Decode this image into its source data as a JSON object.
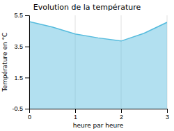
{
  "chart_data": {
    "type": "area",
    "title": "Evolution de la température",
    "xlabel": "heure par heure",
    "ylabel": "Température en °C",
    "x": [
      0,
      0.5,
      1,
      1.5,
      2,
      2.5,
      3
    ],
    "values": [
      5.1,
      4.75,
      4.3,
      4.05,
      3.85,
      4.35,
      5.05
    ],
    "color": "#55bbdd",
    "xlim": [
      0,
      3
    ],
    "ylim": [
      -0.5,
      5.5
    ],
    "xticks": [
      0,
      1,
      2,
      3
    ],
    "yticks": [
      -0.5,
      1.5,
      3.5,
      5.5
    ],
    "grid": "x"
  }
}
